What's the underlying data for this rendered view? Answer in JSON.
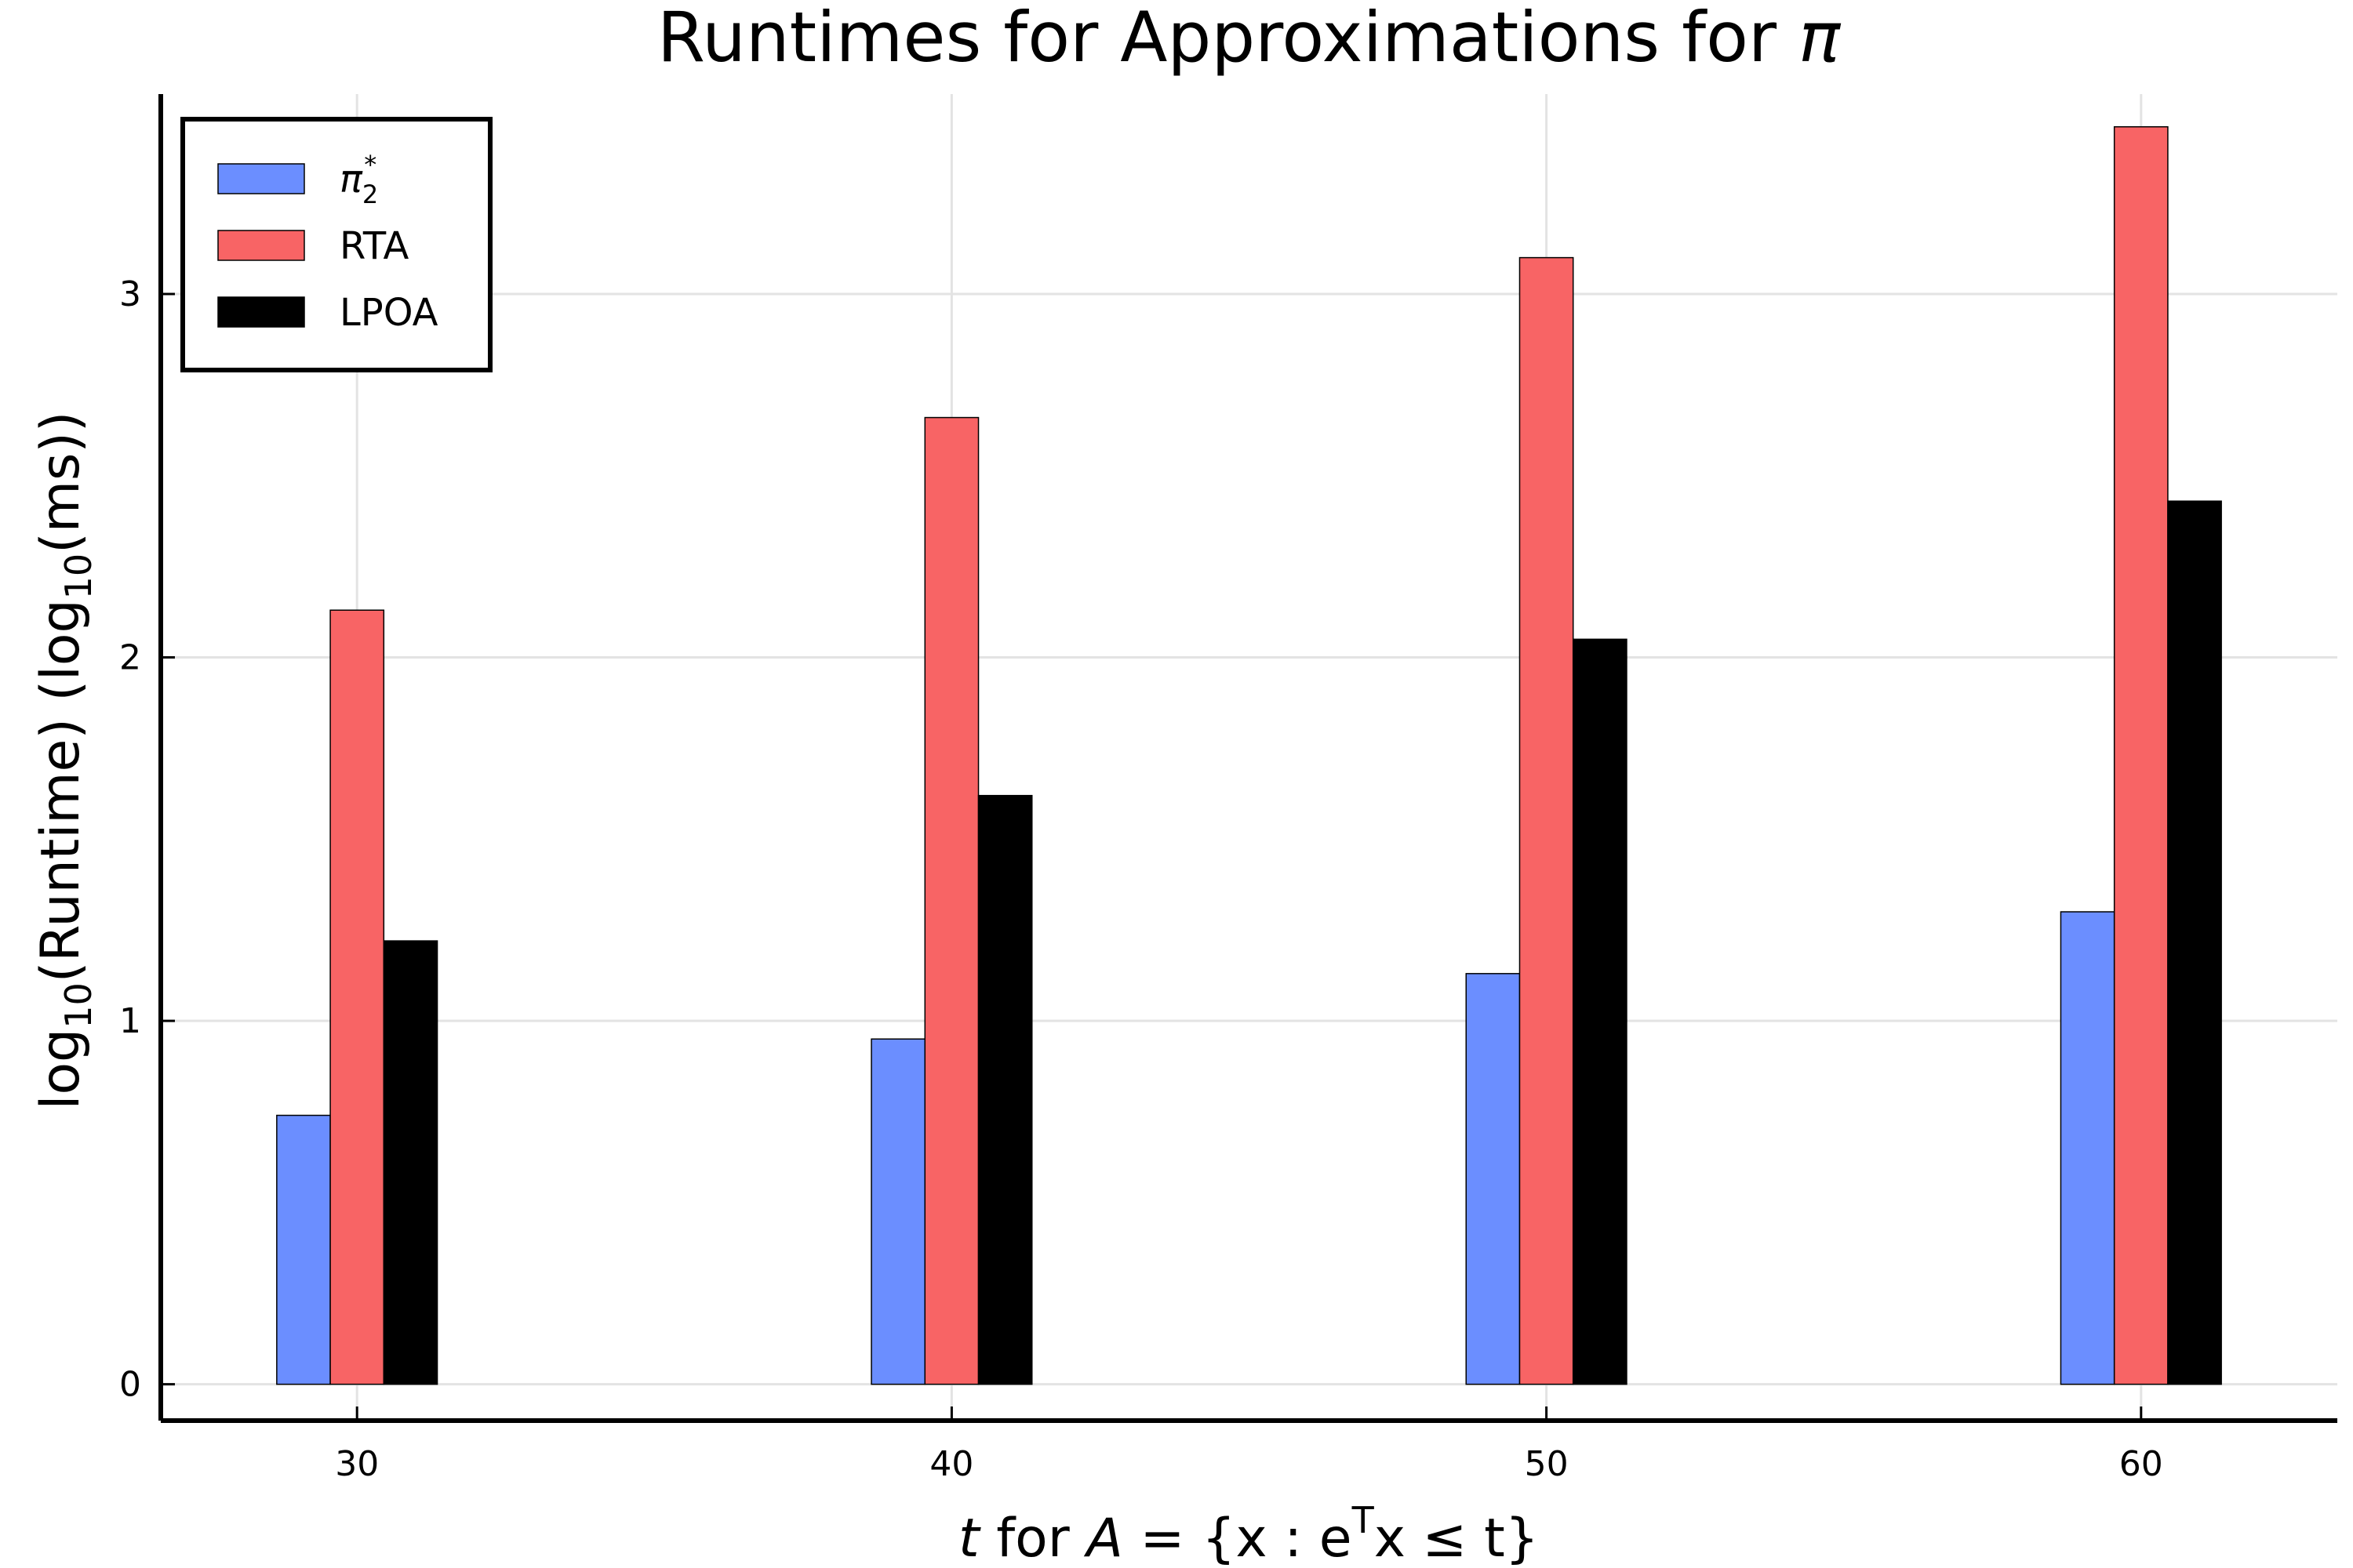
{
  "chart_data": {
    "type": "bar",
    "title": "Runtimes for Approximations for π",
    "xlabel": {
      "prefix_var": "t",
      "middle": " for ",
      "set_var": "A",
      "rest": " = {x : e",
      "sup": "T",
      "tail": "x ≤ t}"
    },
    "ylabel": {
      "part1": "log",
      "sub1": "10",
      "part2": "(Runtime) (log",
      "sub2": "10",
      "part3": "(ms))"
    },
    "categories": [
      30,
      40,
      50,
      60
    ],
    "xlim": [
      26.7,
      63.3
    ],
    "ylim": [
      -0.1,
      3.55
    ],
    "x_ticks": [
      30,
      40,
      50,
      60
    ],
    "y_ticks": [
      0,
      1,
      2,
      3
    ],
    "grid": true,
    "legend_position": "top-left",
    "series": [
      {
        "name": "π",
        "name_sub": "2",
        "name_sup": "*",
        "color": "#6b8eff",
        "values": [
          0.74,
          0.95,
          1.13,
          1.3
        ]
      },
      {
        "name": "RTA",
        "color": "#f86465",
        "values": [
          2.13,
          2.66,
          3.1,
          3.46
        ]
      },
      {
        "name": "LPOA",
        "color": "#000000",
        "values": [
          1.22,
          1.62,
          2.05,
          2.43
        ]
      }
    ]
  }
}
